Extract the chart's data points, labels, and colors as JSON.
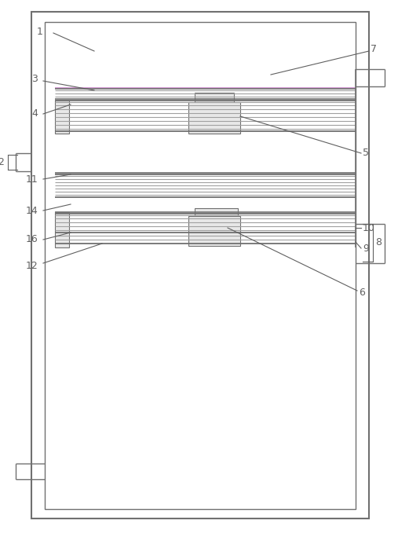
{
  "fig_width": 5.07,
  "fig_height": 6.95,
  "dpi": 100,
  "bg": "#ffffff",
  "lc": "#707070",
  "gray": "#a0a0a0",
  "pink": "#cc88cc",
  "ann": "#606060"
}
